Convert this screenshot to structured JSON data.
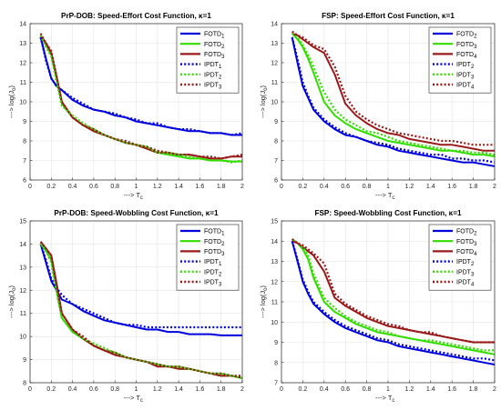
{
  "chart_data": [
    {
      "type": "line",
      "title": "PrP-DOB: Speed-Effort Cost Function, κ=1",
      "xlabel": "---> T",
      "xlabel_sub": "c",
      "ylabel": "---> log(J",
      "ylabel_sub": "o",
      "ylabel_tail": ")",
      "xlim": [
        0,
        2
      ],
      "ylim": [
        6,
        14
      ],
      "xticks": [
        "0",
        "0.2",
        "0.4",
        "0.6",
        "0.8",
        "1",
        "1.2",
        "1.4",
        "1.6",
        "1.8",
        "2"
      ],
      "yticks": [
        "6",
        "7",
        "8",
        "9",
        "10",
        "11",
        "12",
        "13",
        "14"
      ],
      "x": [
        0.1,
        0.15,
        0.2,
        0.25,
        0.3,
        0.4,
        0.5,
        0.6,
        0.7,
        0.8,
        0.9,
        1.0,
        1.1,
        1.2,
        1.3,
        1.4,
        1.5,
        1.6,
        1.7,
        1.8,
        1.9,
        2.0
      ],
      "legend_position": "top-right",
      "series": [
        {
          "name": "FOTD",
          "sub": "1",
          "color": "#0000dd",
          "dash": "solid",
          "values": [
            13.3,
            12.2,
            11.2,
            10.8,
            10.6,
            10.1,
            9.8,
            9.6,
            9.5,
            9.3,
            9.2,
            9.0,
            8.9,
            8.8,
            8.7,
            8.6,
            8.5,
            8.5,
            8.4,
            8.4,
            8.3,
            8.3
          ]
        },
        {
          "name": "FOTD",
          "sub": "2",
          "color": "#33dd00",
          "dash": "solid",
          "values": [
            13.4,
            12.9,
            12.4,
            11.2,
            9.9,
            9.2,
            8.8,
            8.5,
            8.3,
            8.1,
            7.9,
            7.8,
            7.6,
            7.4,
            7.3,
            7.2,
            7.1,
            7.1,
            7.0,
            7.0,
            6.95,
            6.95
          ]
        },
        {
          "name": "FOTD",
          "sub": "3",
          "color": "#9a1a1a",
          "dash": "solid",
          "values": [
            13.4,
            13.0,
            12.5,
            11.3,
            10.0,
            9.2,
            8.8,
            8.5,
            8.3,
            8.1,
            7.9,
            7.8,
            7.6,
            7.4,
            7.4,
            7.3,
            7.3,
            7.2,
            7.1,
            7.1,
            7.2,
            7.2
          ]
        },
        {
          "name": "IPDT",
          "sub": "1",
          "color": "#0000dd",
          "dash": "dotted",
          "values": [
            13.3,
            12.1,
            11.2,
            10.8,
            10.6,
            10.2,
            9.9,
            9.6,
            9.5,
            9.4,
            9.2,
            9.1,
            8.9,
            8.9,
            8.7,
            8.6,
            8.6,
            8.5,
            8.4,
            8.4,
            8.3,
            8.4
          ]
        },
        {
          "name": "IPDT",
          "sub": "2",
          "color": "#33dd00",
          "dash": "dotted",
          "values": [
            13.4,
            12.8,
            12.3,
            11.0,
            9.8,
            9.3,
            8.9,
            8.6,
            8.3,
            8.1,
            7.9,
            7.8,
            7.7,
            7.4,
            7.4,
            7.3,
            7.2,
            7.1,
            7.0,
            7.0,
            6.9,
            7.0
          ]
        },
        {
          "name": "IPDT",
          "sub": "3",
          "color": "#9a1a1a",
          "dash": "dotted",
          "values": [
            13.5,
            13.0,
            12.6,
            11.3,
            10.0,
            9.2,
            8.8,
            8.6,
            8.3,
            8.1,
            8.0,
            7.8,
            7.7,
            7.5,
            7.4,
            7.3,
            7.3,
            7.2,
            7.2,
            7.1,
            7.2,
            7.3
          ]
        }
      ]
    },
    {
      "type": "line",
      "title": "FSP: Speed-Effort Cost Function, κ=1",
      "xlabel": "---> T",
      "xlabel_sub": "c",
      "ylabel": "---> log(J",
      "ylabel_sub": "o",
      "ylabel_tail": ")",
      "xlim": [
        0,
        2
      ],
      "ylim": [
        6,
        14
      ],
      "xticks": [
        "0",
        "0.2",
        "0.4",
        "0.6",
        "0.8",
        "1",
        "1.2",
        "1.4",
        "1.6",
        "1.8",
        "2"
      ],
      "yticks": [
        "6",
        "7",
        "8",
        "9",
        "10",
        "11",
        "12",
        "13",
        "14"
      ],
      "x": [
        0.1,
        0.15,
        0.2,
        0.25,
        0.3,
        0.4,
        0.5,
        0.6,
        0.7,
        0.8,
        0.9,
        1.0,
        1.1,
        1.2,
        1.3,
        1.4,
        1.5,
        1.6,
        1.7,
        1.8,
        1.9,
        2.0
      ],
      "legend_position": "top-right",
      "series": [
        {
          "name": "FOTD",
          "sub": "2",
          "color": "#0000dd",
          "dash": "solid",
          "values": [
            13.3,
            12.0,
            10.8,
            10.2,
            9.6,
            9.0,
            8.6,
            8.3,
            8.2,
            8.0,
            7.8,
            7.7,
            7.5,
            7.4,
            7.3,
            7.2,
            7.1,
            7.0,
            6.9,
            6.9,
            6.8,
            6.7
          ]
        },
        {
          "name": "FOTD",
          "sub": "3",
          "color": "#33dd00",
          "dash": "solid",
          "values": [
            13.5,
            13.2,
            12.8,
            12.2,
            11.5,
            10.0,
            9.3,
            8.9,
            8.6,
            8.4,
            8.2,
            8.0,
            7.9,
            7.8,
            7.7,
            7.6,
            7.5,
            7.5,
            7.4,
            7.3,
            7.3,
            7.2
          ]
        },
        {
          "name": "FOTD",
          "sub": "4",
          "color": "#9a1a1a",
          "dash": "solid",
          "values": [
            13.5,
            13.4,
            13.2,
            13.0,
            12.8,
            12.5,
            11.4,
            9.9,
            9.3,
            8.9,
            8.6,
            8.4,
            8.3,
            8.1,
            8.0,
            7.9,
            7.8,
            7.8,
            7.7,
            7.6,
            7.5,
            7.5
          ]
        },
        {
          "name": "IPDT",
          "sub": "2",
          "color": "#0000dd",
          "dash": "dotted",
          "values": [
            13.3,
            12.2,
            11.0,
            10.3,
            9.7,
            9.1,
            8.7,
            8.4,
            8.2,
            8.0,
            7.9,
            7.8,
            7.6,
            7.5,
            7.4,
            7.3,
            7.3,
            7.1,
            7.1,
            7.0,
            7.0,
            6.9
          ]
        },
        {
          "name": "IPDT",
          "sub": "3",
          "color": "#33dd00",
          "dash": "dotted",
          "values": [
            13.5,
            13.3,
            12.9,
            12.4,
            11.8,
            10.5,
            9.6,
            9.1,
            8.8,
            8.5,
            8.4,
            8.2,
            8.0,
            7.9,
            7.8,
            7.7,
            7.6,
            7.5,
            7.5,
            7.4,
            7.4,
            7.3
          ]
        },
        {
          "name": "IPDT",
          "sub": "4",
          "color": "#9a1a1a",
          "dash": "dotted",
          "values": [
            13.6,
            13.4,
            13.3,
            13.1,
            12.9,
            12.7,
            11.8,
            10.3,
            9.5,
            9.1,
            8.8,
            8.6,
            8.4,
            8.3,
            8.2,
            8.1,
            8.0,
            8.0,
            7.9,
            7.8,
            7.8,
            7.8
          ]
        }
      ]
    },
    {
      "type": "line",
      "title": "PrP-DOB: Speed-Wobbling Cost Function, κ=1",
      "xlabel": "---> T",
      "xlabel_sub": "c",
      "ylabel": "---> log(J",
      "ylabel_sub": "o",
      "ylabel_tail": ")",
      "xlim": [
        0,
        2
      ],
      "ylim": [
        8,
        15
      ],
      "xticks": [
        "0",
        "0.2",
        "0.4",
        "0.6",
        "0.8",
        "1",
        "1.2",
        "1.4",
        "1.6",
        "1.8",
        "2"
      ],
      "yticks": [
        "8",
        "9",
        "10",
        "11",
        "12",
        "13",
        "14",
        "15"
      ],
      "x": [
        0.1,
        0.15,
        0.2,
        0.25,
        0.3,
        0.4,
        0.5,
        0.6,
        0.7,
        0.8,
        0.9,
        1.0,
        1.1,
        1.2,
        1.3,
        1.4,
        1.5,
        1.6,
        1.7,
        1.8,
        1.9,
        2.0
      ],
      "legend_position": "top-right",
      "series": [
        {
          "name": "FOTD",
          "sub": "1",
          "color": "#0000dd",
          "dash": "solid",
          "values": [
            14.0,
            13.2,
            12.4,
            12.0,
            11.6,
            11.4,
            11.1,
            10.9,
            10.7,
            10.6,
            10.5,
            10.4,
            10.3,
            10.3,
            10.2,
            10.2,
            10.1,
            10.1,
            10.1,
            10.05,
            10.05,
            10.05
          ]
        },
        {
          "name": "FOTD",
          "sub": "2",
          "color": "#33dd00",
          "dash": "solid",
          "values": [
            14.0,
            13.7,
            13.3,
            12.0,
            10.8,
            10.2,
            9.9,
            9.6,
            9.4,
            9.3,
            9.1,
            9.0,
            8.9,
            8.8,
            8.7,
            8.6,
            8.6,
            8.5,
            8.4,
            8.3,
            8.3,
            8.2
          ]
        },
        {
          "name": "FOTD",
          "sub": "3",
          "color": "#9a1a1a",
          "dash": "solid",
          "values": [
            14.1,
            13.8,
            13.5,
            12.3,
            11.0,
            10.3,
            9.9,
            9.6,
            9.4,
            9.2,
            9.1,
            9.0,
            8.9,
            8.7,
            8.7,
            8.6,
            8.6,
            8.5,
            8.4,
            8.3,
            8.3,
            8.2
          ]
        },
        {
          "name": "IPDT",
          "sub": "1",
          "color": "#0000dd",
          "dash": "dotted",
          "values": [
            14.0,
            13.3,
            12.5,
            12.1,
            11.8,
            11.4,
            11.2,
            11.0,
            10.8,
            10.6,
            10.5,
            10.5,
            10.4,
            10.4,
            10.4,
            10.4,
            10.4,
            10.4,
            10.4,
            10.4,
            10.4,
            10.4
          ]
        },
        {
          "name": "IPDT",
          "sub": "2",
          "color": "#33dd00",
          "dash": "dotted",
          "values": [
            14.0,
            13.7,
            13.2,
            11.9,
            10.8,
            10.2,
            9.9,
            9.7,
            9.5,
            9.3,
            9.1,
            9.0,
            8.9,
            8.8,
            8.7,
            8.7,
            8.6,
            8.5,
            8.4,
            8.4,
            8.3,
            8.2
          ]
        },
        {
          "name": "IPDT",
          "sub": "3",
          "color": "#9a1a1a",
          "dash": "dotted",
          "values": [
            14.1,
            13.8,
            13.5,
            12.2,
            11.0,
            10.3,
            10.0,
            9.6,
            9.4,
            9.3,
            9.1,
            9.0,
            8.9,
            8.8,
            8.7,
            8.7,
            8.6,
            8.5,
            8.4,
            8.4,
            8.3,
            8.3
          ]
        }
      ]
    },
    {
      "type": "line",
      "title": "FSP: Speed-Wobbling Cost Function, κ=1",
      "xlabel": "---> T",
      "xlabel_sub": "c",
      "ylabel": "---> log(J",
      "ylabel_sub": "o",
      "ylabel_tail": ")",
      "xlim": [
        0,
        2
      ],
      "ylim": [
        7,
        15
      ],
      "xticks": [
        "0",
        "0.2",
        "0.4",
        "0.6",
        "0.8",
        "1",
        "1.2",
        "1.4",
        "1.6",
        "1.8",
        "2"
      ],
      "yticks": [
        "7",
        "8",
        "9",
        "10",
        "11",
        "12",
        "13",
        "14",
        "15"
      ],
      "x": [
        0.1,
        0.15,
        0.2,
        0.25,
        0.3,
        0.4,
        0.5,
        0.6,
        0.7,
        0.8,
        0.9,
        1.0,
        1.1,
        1.2,
        1.3,
        1.4,
        1.5,
        1.6,
        1.7,
        1.8,
        1.9,
        2.0
      ],
      "legend_position": "top-right",
      "series": [
        {
          "name": "FOTD",
          "sub": "2",
          "color": "#0000dd",
          "dash": "solid",
          "values": [
            14.0,
            13.0,
            12.0,
            11.4,
            10.9,
            10.4,
            10.0,
            9.7,
            9.5,
            9.3,
            9.1,
            9.0,
            8.8,
            8.7,
            8.6,
            8.5,
            8.4,
            8.3,
            8.2,
            8.1,
            8.0,
            7.9
          ]
        },
        {
          "name": "FOTD",
          "sub": "3",
          "color": "#33dd00",
          "dash": "solid",
          "values": [
            14.1,
            13.9,
            13.6,
            13.1,
            12.2,
            11.0,
            10.5,
            10.2,
            9.9,
            9.7,
            9.5,
            9.4,
            9.3,
            9.2,
            9.1,
            9.0,
            8.9,
            8.8,
            8.7,
            8.6,
            8.5,
            8.4
          ]
        },
        {
          "name": "FOTD",
          "sub": "4",
          "color": "#9a1a1a",
          "dash": "solid",
          "values": [
            14.0,
            13.9,
            13.7,
            13.5,
            13.3,
            12.5,
            11.2,
            10.8,
            10.5,
            10.2,
            10.0,
            9.8,
            9.7,
            9.6,
            9.5,
            9.4,
            9.3,
            9.2,
            9.1,
            9.0,
            9.0,
            9.0
          ]
        },
        {
          "name": "IPDT",
          "sub": "2",
          "color": "#0000dd",
          "dash": "dotted",
          "values": [
            14.0,
            13.1,
            12.1,
            11.5,
            11.0,
            10.5,
            10.1,
            9.8,
            9.6,
            9.4,
            9.2,
            9.1,
            8.9,
            8.8,
            8.7,
            8.6,
            8.5,
            8.4,
            8.3,
            8.2,
            8.2,
            8.1
          ]
        },
        {
          "name": "IPDT",
          "sub": "3",
          "color": "#33dd00",
          "dash": "dotted",
          "values": [
            14.1,
            13.9,
            13.7,
            13.3,
            12.4,
            11.2,
            10.7,
            10.3,
            10.0,
            9.8,
            9.6,
            9.5,
            9.3,
            9.2,
            9.1,
            9.1,
            9.0,
            8.9,
            8.8,
            8.7,
            8.6,
            8.6
          ]
        },
        {
          "name": "IPDT",
          "sub": "4",
          "color": "#9a1a1a",
          "dash": "dotted",
          "values": [
            14.1,
            13.9,
            13.8,
            13.6,
            13.4,
            12.9,
            11.4,
            10.9,
            10.6,
            10.3,
            10.1,
            9.9,
            9.8,
            9.6,
            9.5,
            9.5,
            9.3,
            9.2,
            9.1,
            9.0,
            9.0,
            9.0
          ]
        }
      ]
    }
  ]
}
